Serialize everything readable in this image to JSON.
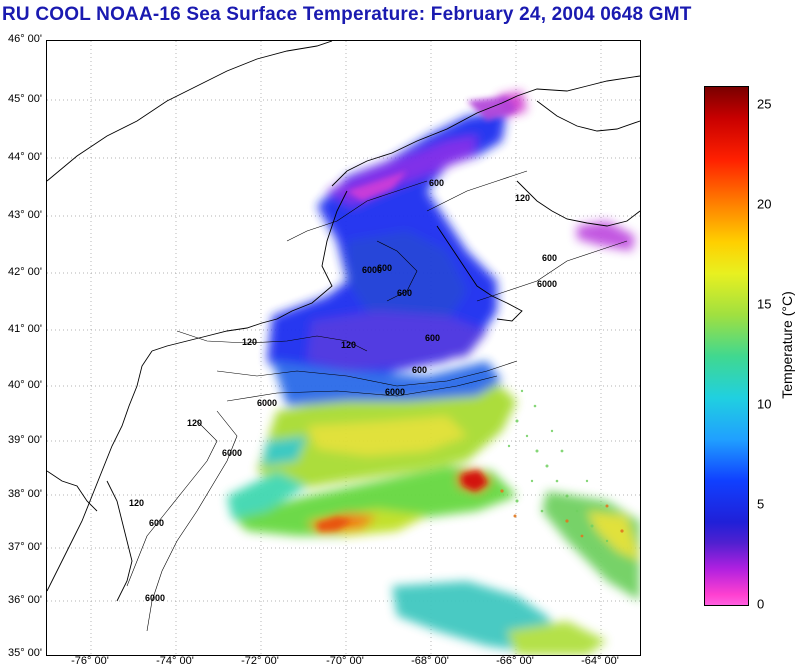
{
  "title": "RU COOL  NOAA-16  Sea Surface Temperature:  February 24, 2004 0648 GMT",
  "map": {
    "lat_labels": [
      "46° 00'",
      "45° 00'",
      "44° 00'",
      "43° 00'",
      "42° 00'",
      "41° 00'",
      "40° 00'",
      "39° 00'",
      "38° 00'",
      "37° 00'",
      "36° 00'",
      "35° 00'"
    ],
    "lon_labels": [
      "-76° 00'",
      "-74° 00'",
      "-72° 00'",
      "-70° 00'",
      "-68° 00'",
      "-66° 00'",
      "-64° 00'"
    ],
    "contour_labels": [
      "120",
      "600",
      "6000",
      "600",
      "6000",
      "120",
      "600",
      "6000",
      "600",
      "120",
      "600",
      "6000",
      "120",
      "6000",
      "600",
      "6000",
      "120",
      "600"
    ],
    "extent": {
      "lon_min": -77,
      "lon_max": -63,
      "lat_min": 35,
      "lat_max": 46
    }
  },
  "colorbar": {
    "label": "Temperature (°C)",
    "ticks": [
      "25",
      "20",
      "15",
      "10",
      "5",
      "0"
    ],
    "min": 0,
    "max": 26
  },
  "colors": {
    "title": "#1a1ab0"
  }
}
